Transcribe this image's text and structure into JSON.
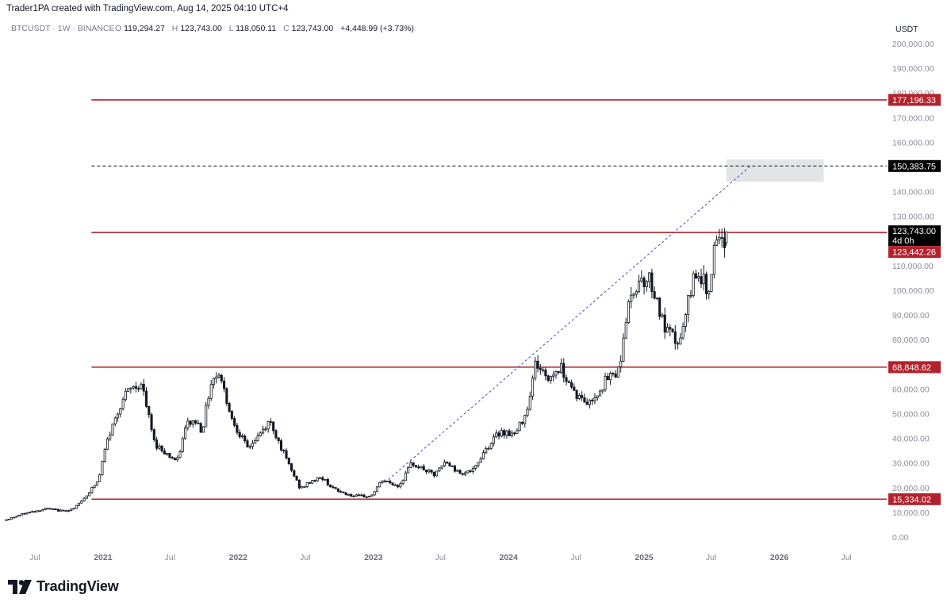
{
  "header": {
    "attribution": "Trader1PA created with TradingView.com, Aug 14, 2025 04:10 UTC+4"
  },
  "legend": {
    "symbol": "BTCUSDT · 1W · BINANCE",
    "open_label": "O",
    "open": "119,294.27",
    "high_label": "H",
    "high": "123,743.00",
    "low_label": "L",
    "low": "118,050.11",
    "close_label": "C",
    "close": "123,743.00",
    "change": "+4,448.99 (+3.73%)"
  },
  "footer": {
    "brand": "TradingView"
  },
  "colors": {
    "level_line": "#b2222d",
    "tag_bg": "#b2222d",
    "trend_line": "#3c4fb4",
    "candle": "#131722",
    "target_box": "#e3e4e6",
    "price_tag_bg": "#000000"
  },
  "chart_data": {
    "type": "candlestick",
    "symbol": "BTCUSDT",
    "interval": "1W",
    "exchange": "BINANCE",
    "y_unit": "USDT",
    "ylim": [
      0,
      200000
    ],
    "yticks": [
      0,
      10000,
      20000,
      30000,
      40000,
      50000,
      60000,
      70000,
      80000,
      90000,
      100000,
      110000,
      120000,
      130000,
      140000,
      150000,
      160000,
      170000,
      180000,
      190000,
      200000
    ],
    "ytick_labels": [
      "0.00",
      "10,000.00",
      "20,000.00",
      "30,000.00",
      "40,000.00",
      "50,000.00",
      "60,000.00",
      "70,000.00",
      "80,000.00",
      "90,000.00",
      "100,000.00",
      "110,000.00",
      "120,000.00",
      "130,000.00",
      "140,000.00",
      "150,000.00",
      "160,000.00",
      "170,000.00",
      "180,000.00",
      "190,000.00",
      "200,000.00"
    ],
    "xlim": [
      "2020-04-15",
      "2026-10-01"
    ],
    "xticks": [
      {
        "date": "2020-07-01",
        "label": "Jul",
        "year": false
      },
      {
        "date": "2021-01-01",
        "label": "2021",
        "year": true
      },
      {
        "date": "2021-07-01",
        "label": "Jul",
        "year": false
      },
      {
        "date": "2022-01-01",
        "label": "2022",
        "year": true
      },
      {
        "date": "2022-07-01",
        "label": "Jul",
        "year": false
      },
      {
        "date": "2023-01-01",
        "label": "2023",
        "year": true
      },
      {
        "date": "2023-07-01",
        "label": "Jul",
        "year": false
      },
      {
        "date": "2024-01-01",
        "label": "2024",
        "year": true
      },
      {
        "date": "2024-07-01",
        "label": "Jul",
        "year": false
      },
      {
        "date": "2025-01-01",
        "label": "2025",
        "year": true
      },
      {
        "date": "2025-07-01",
        "label": "Jul",
        "year": false
      },
      {
        "date": "2026-01-01",
        "label": "2026",
        "year": true
      },
      {
        "date": "2026-07-01",
        "label": "Jul",
        "year": false
      }
    ],
    "close_anchors": [
      [
        "2020-04-15",
        7000
      ],
      [
        "2020-06-01",
        9500
      ],
      [
        "2020-08-01",
        11500
      ],
      [
        "2020-09-15",
        10500
      ],
      [
        "2020-10-15",
        11500
      ],
      [
        "2020-11-15",
        16500
      ],
      [
        "2020-12-20",
        23000
      ],
      [
        "2021-01-10",
        38000
      ],
      [
        "2021-02-20",
        55000
      ],
      [
        "2021-03-15",
        60000
      ],
      [
        "2021-04-15",
        62000
      ],
      [
        "2021-05-20",
        38000
      ],
      [
        "2021-06-20",
        34000
      ],
      [
        "2021-07-20",
        30500
      ],
      [
        "2021-08-15",
        46000
      ],
      [
        "2021-09-10",
        47000
      ],
      [
        "2021-09-25",
        43000
      ],
      [
        "2021-10-20",
        63000
      ],
      [
        "2021-11-10",
        67000
      ],
      [
        "2021-12-15",
        48000
      ],
      [
        "2022-01-25",
        36000
      ],
      [
        "2022-02-20",
        40000
      ],
      [
        "2022-03-28",
        47000
      ],
      [
        "2022-05-15",
        30000
      ],
      [
        "2022-06-18",
        19500
      ],
      [
        "2022-07-20",
        23000
      ],
      [
        "2022-08-15",
        24000
      ],
      [
        "2022-09-20",
        19000
      ],
      [
        "2022-11-10",
        16500
      ],
      [
        "2022-12-25",
        16500
      ],
      [
        "2023-01-25",
        23000
      ],
      [
        "2023-03-10",
        20500
      ],
      [
        "2023-04-15",
        30000
      ],
      [
        "2023-06-15",
        25000
      ],
      [
        "2023-07-15",
        30500
      ],
      [
        "2023-08-20",
        26000
      ],
      [
        "2023-09-30",
        27000
      ],
      [
        "2023-10-25",
        34500
      ],
      [
        "2023-12-10",
        43000
      ],
      [
        "2024-01-20",
        41500
      ],
      [
        "2024-02-20",
        52000
      ],
      [
        "2024-03-14",
        71000
      ],
      [
        "2024-04-15",
        64000
      ],
      [
        "2024-05-20",
        69000
      ],
      [
        "2024-07-05",
        57000
      ],
      [
        "2024-08-05",
        54000
      ],
      [
        "2024-09-20",
        63500
      ],
      [
        "2024-10-25",
        68000
      ],
      [
        "2024-11-15",
        91000
      ],
      [
        "2024-12-17",
        105000
      ],
      [
        "2025-01-20",
        104000
      ],
      [
        "2025-02-25",
        84000
      ],
      [
        "2025-04-07",
        78000
      ],
      [
        "2025-05-20",
        109000
      ],
      [
        "2025-06-22",
        100000
      ],
      [
        "2025-07-14",
        119000
      ],
      [
        "2025-08-04",
        117000
      ],
      [
        "2025-08-11",
        123743
      ]
    ],
    "last_candle": {
      "date": "2025-08-11",
      "open": 119294.27,
      "high": 123743.0,
      "low": 118050.11,
      "close": 123743.0
    },
    "horizontal_levels": [
      {
        "name": "resistance-177k",
        "value": 177196.33,
        "label": "177,196.33",
        "style": "solid",
        "start": "2020-12-01"
      },
      {
        "name": "target-150k",
        "value": 150383.75,
        "label": "150,383.75",
        "style": "dashed",
        "start": "2020-12-01"
      },
      {
        "name": "resistance-123k",
        "value": 123442.26,
        "label": "123,442.26",
        "style": "solid",
        "start": "2020-12-01"
      },
      {
        "name": "support-68k",
        "value": 68848.62,
        "label": "68,848.62",
        "style": "solid",
        "start": "2020-12-01"
      },
      {
        "name": "support-15k",
        "value": 15334.02,
        "label": "15,334.02",
        "style": "solid",
        "start": "2020-12-01"
      }
    ],
    "trend_line": {
      "from": [
        "2023-02-01",
        22000
      ],
      "to": [
        "2025-10-15",
        150383.75
      ],
      "style": "dashed"
    },
    "target_zone": {
      "from": "2025-08-11",
      "to": "2026-05-01",
      "low": 144000,
      "high": 153000
    },
    "current_price": {
      "label": "123,743.00",
      "countdown": "4d 0h"
    }
  }
}
